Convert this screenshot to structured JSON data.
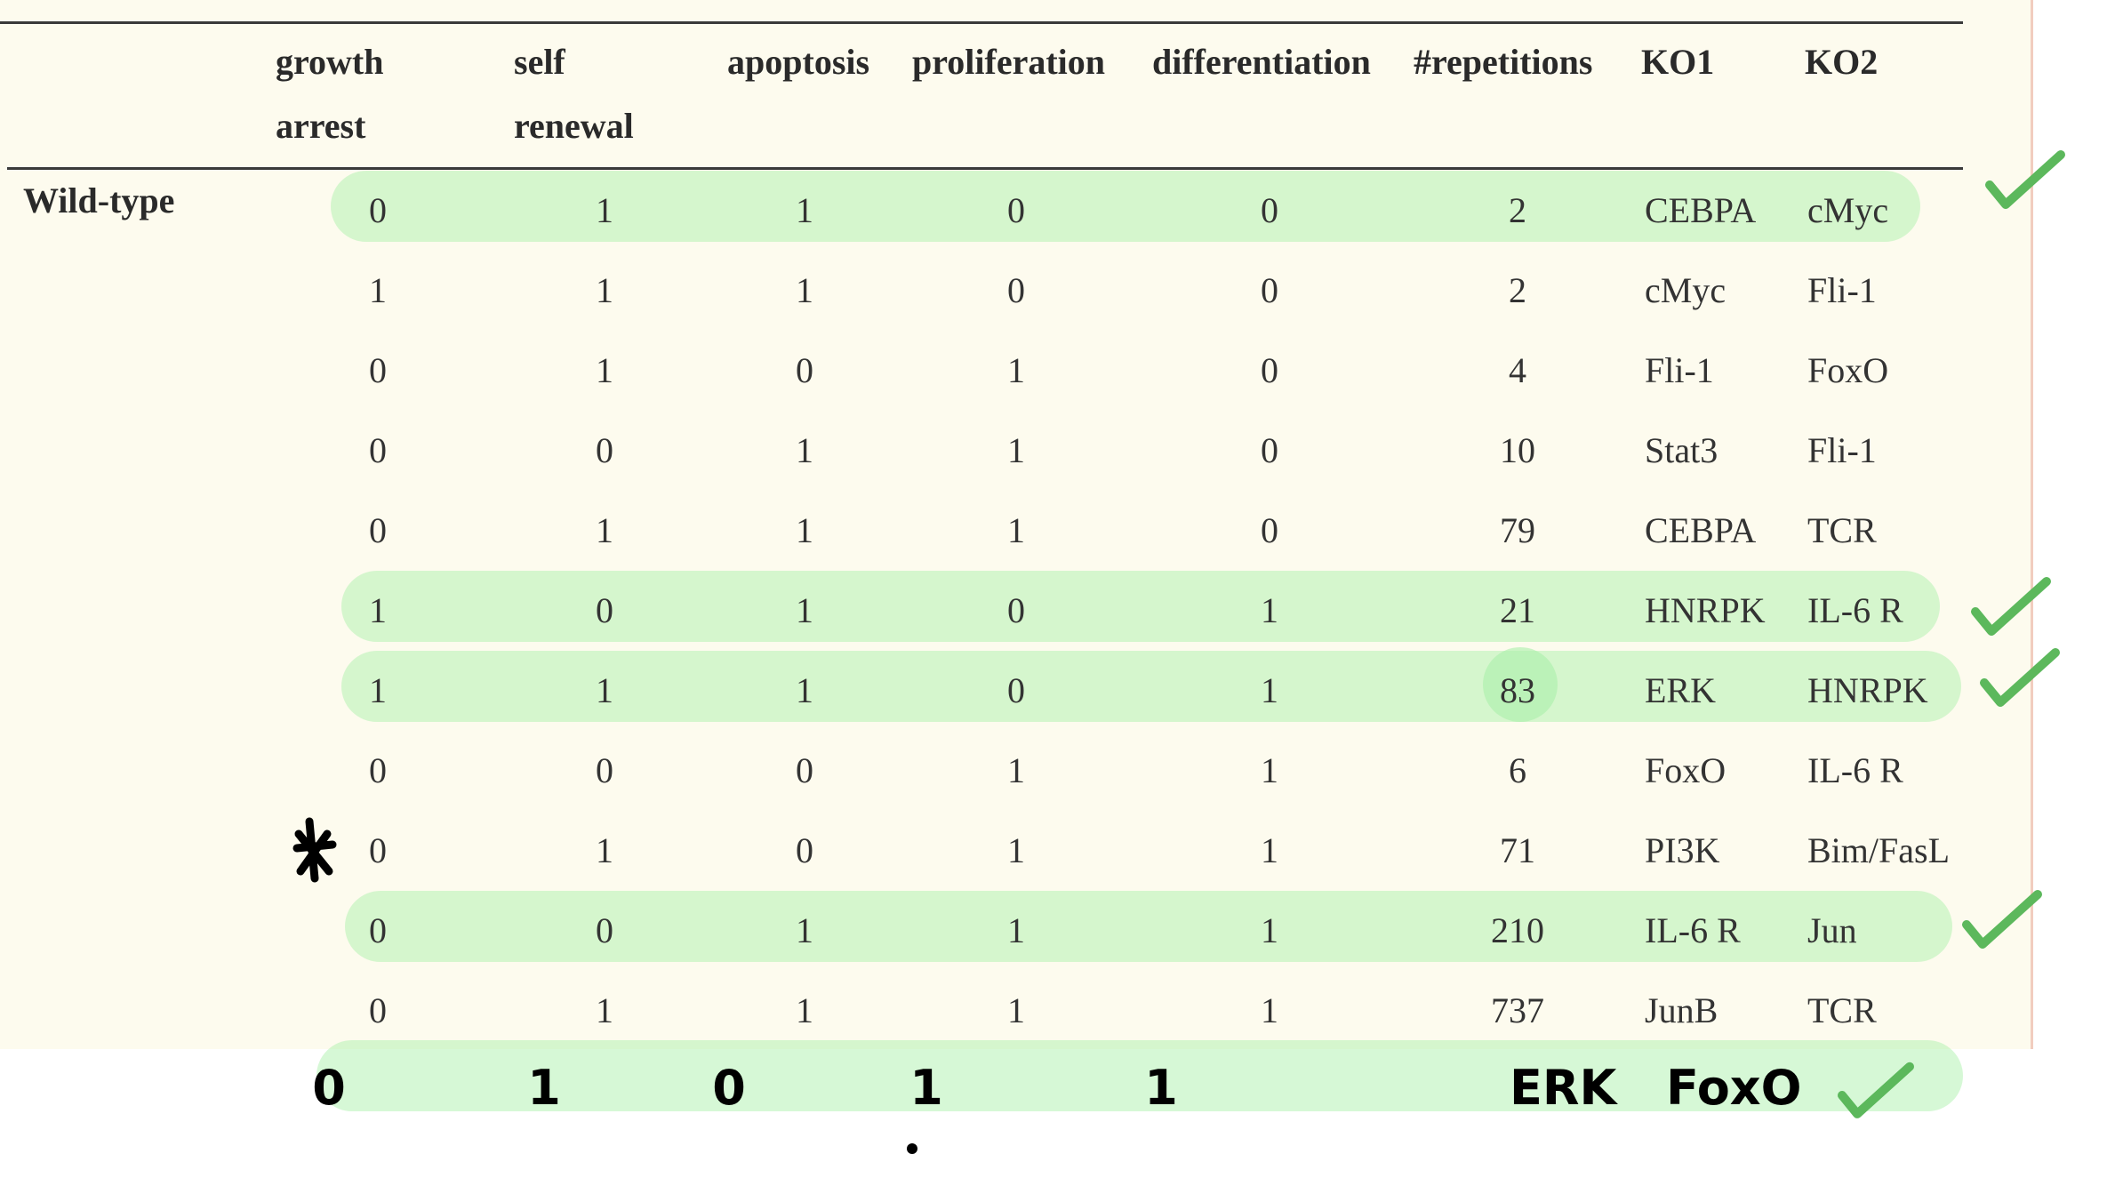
{
  "table": {
    "headers": [
      {
        "key": "growth_arrest",
        "lines": [
          "growth",
          "arrest"
        ]
      },
      {
        "key": "self_renewal",
        "lines": [
          "self",
          "renewal"
        ]
      },
      {
        "key": "apoptosis",
        "lines": [
          "apoptosis"
        ]
      },
      {
        "key": "proliferation",
        "lines": [
          "proliferation"
        ]
      },
      {
        "key": "differentiation",
        "lines": [
          "differentiation"
        ]
      },
      {
        "key": "repetitions",
        "lines": [
          "#repetitions"
        ]
      },
      {
        "key": "ko1",
        "lines": [
          "KO1"
        ]
      },
      {
        "key": "ko2",
        "lines": [
          "KO2"
        ]
      }
    ],
    "row_label": "Wild-type",
    "rows": [
      {
        "values": [
          "0",
          "1",
          "1",
          "0",
          "0",
          "2",
          "CEBPA",
          "cMyc"
        ],
        "highlighted": true,
        "checked": true
      },
      {
        "values": [
          "1",
          "1",
          "1",
          "0",
          "0",
          "2",
          "cMyc",
          "Fli-1"
        ],
        "highlighted": false,
        "checked": false
      },
      {
        "values": [
          "0",
          "1",
          "0",
          "1",
          "0",
          "4",
          "Fli-1",
          "FoxO"
        ],
        "highlighted": false,
        "checked": false
      },
      {
        "values": [
          "0",
          "0",
          "1",
          "1",
          "0",
          "10",
          "Stat3",
          "Fli-1"
        ],
        "highlighted": false,
        "checked": false
      },
      {
        "values": [
          "0",
          "1",
          "1",
          "1",
          "0",
          "79",
          "CEBPA",
          "TCR"
        ],
        "highlighted": false,
        "checked": false
      },
      {
        "values": [
          "1",
          "0",
          "1",
          "0",
          "1",
          "21",
          "HNRPK",
          "IL-6 R"
        ],
        "highlighted": true,
        "checked": true
      },
      {
        "values": [
          "1",
          "1",
          "1",
          "0",
          "1",
          "83",
          "ERK",
          "HNRPK"
        ],
        "highlighted": true,
        "checked": true
      },
      {
        "values": [
          "0",
          "0",
          "0",
          "1",
          "1",
          "6",
          "FoxO",
          "IL-6 R"
        ],
        "highlighted": false,
        "checked": false
      },
      {
        "values": [
          "0",
          "1",
          "0",
          "1",
          "1",
          "71",
          "PI3K",
          "Bim/FasL"
        ],
        "highlighted": false,
        "checked": false,
        "starred": true
      },
      {
        "values": [
          "0",
          "0",
          "1",
          "1",
          "1",
          "210",
          "IL-6 R",
          "Jun"
        ],
        "highlighted": true,
        "checked": true
      },
      {
        "values": [
          "0",
          "1",
          "1",
          "1",
          "1",
          "737",
          "JunB",
          "TCR"
        ],
        "highlighted": false,
        "checked": false
      }
    ]
  },
  "handwritten_row": {
    "values": [
      "0",
      "1",
      "0",
      "1",
      "1",
      "ERK",
      "FoxO"
    ],
    "highlighted": true,
    "checked": true
  },
  "colors": {
    "paper": "#fdfbee",
    "highlight": "#c8f5c8",
    "checkmark": "#5cb85c",
    "ink": "#000000"
  },
  "icons": [
    "checkmark-icon",
    "star-icon"
  ]
}
